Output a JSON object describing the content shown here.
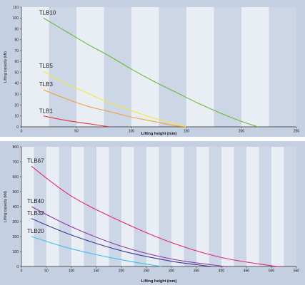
{
  "colors": {
    "band_light": "#e9edf4",
    "band_dark": "#cdd6e6",
    "plot_bg": "#c4cfe1",
    "gap": "#ffffff"
  },
  "chart_data": [
    {
      "type": "line",
      "title": "",
      "xlabel": "Lifting height (mm)",
      "ylabel": "Lifting capacity (kN)",
      "xlim": [
        0,
        250
      ],
      "ylim": [
        0,
        110
      ],
      "x_ticks": [
        0,
        50,
        100,
        150,
        200,
        250
      ],
      "y_ticks": [
        0,
        10,
        20,
        30,
        40,
        50,
        60,
        70,
        80,
        90,
        100,
        110
      ],
      "grid": false,
      "series": [
        {
          "name": "TLB10",
          "color": "#66bb33",
          "x": [
            20,
            40,
            60,
            80,
            100,
            120,
            140,
            160,
            180,
            200,
            215
          ],
          "y": [
            100,
            88,
            76,
            65,
            53,
            42,
            32,
            22,
            13,
            5,
            0
          ]
        },
        {
          "name": "TLB5",
          "color": "#f2ea3a",
          "x": [
            20,
            40,
            60,
            80,
            100,
            120,
            140,
            150
          ],
          "y": [
            51,
            40,
            31,
            22,
            15,
            8,
            3,
            0
          ]
        },
        {
          "name": "TLB3",
          "color": "#f2a03c",
          "x": [
            20,
            40,
            60,
            80,
            100,
            120,
            140,
            150
          ],
          "y": [
            34,
            26,
            19,
            14,
            9,
            5,
            1,
            0
          ]
        },
        {
          "name": "TLB1",
          "color": "#e2373d",
          "x": [
            20,
            40,
            60,
            80
          ],
          "y": [
            10,
            6,
            3,
            0
          ]
        }
      ]
    },
    {
      "type": "line",
      "title": "",
      "xlabel": "Lifting height (mm)",
      "ylabel": "Lifting capacity (kN)",
      "xlim": [
        0,
        550
      ],
      "ylim": [
        0,
        800
      ],
      "x_ticks": [
        0,
        50,
        100,
        150,
        200,
        250,
        300,
        350,
        400,
        450,
        500,
        550
      ],
      "y_ticks": [
        0,
        100,
        200,
        300,
        400,
        500,
        600,
        700,
        800
      ],
      "grid": false,
      "series": [
        {
          "name": "TLB67",
          "color": "#e0267e",
          "x": [
            20,
            100,
            200,
            300,
            400,
            500,
            520
          ],
          "y": [
            670,
            470,
            300,
            160,
            60,
            5,
            0
          ]
        },
        {
          "name": "TLB40",
          "color": "#8e3aa0",
          "x": [
            20,
            100,
            200,
            300,
            400,
            410
          ],
          "y": [
            400,
            265,
            135,
            50,
            3,
            0
          ]
        },
        {
          "name": "TLB32",
          "color": "#3c3a92",
          "x": [
            20,
            100,
            200,
            300,
            380
          ],
          "y": [
            320,
            210,
            105,
            35,
            0
          ]
        },
        {
          "name": "TLB20",
          "color": "#40c1ea",
          "x": [
            20,
            100,
            200,
            280
          ],
          "y": [
            200,
            118,
            45,
            0
          ]
        }
      ]
    }
  ]
}
